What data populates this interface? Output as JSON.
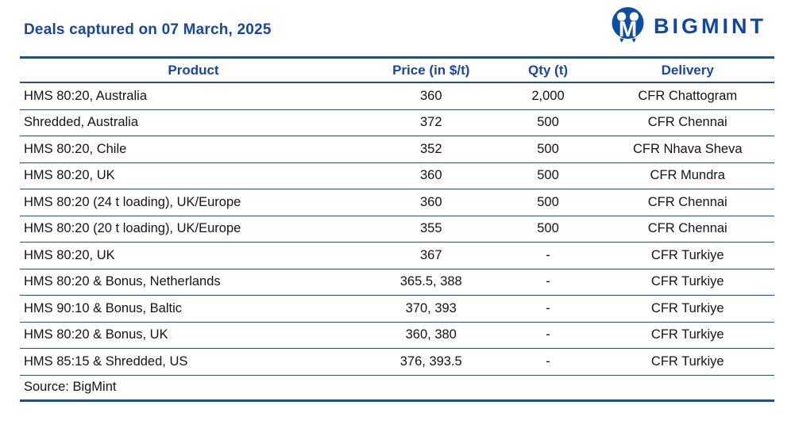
{
  "header": {
    "title": "Deals captured on 07 March, 2025",
    "brand_name": "BIGMINT"
  },
  "table": {
    "columns": [
      "Product",
      "Price (in $/t)",
      "Qty (t)",
      "Delivery"
    ],
    "rows": [
      [
        "HMS 80:20, Australia",
        "360",
        "2,000",
        "CFR Chattogram"
      ],
      [
        "Shredded, Australia",
        "372",
        "500",
        "CFR Chennai"
      ],
      [
        "HMS 80:20, Chile",
        "352",
        "500",
        "CFR Nhava Sheva"
      ],
      [
        "HMS 80:20, UK",
        "360",
        "500",
        "CFR Mundra"
      ],
      [
        "HMS 80:20 (24 t loading), UK/Europe",
        "360",
        "500",
        "CFR Chennai"
      ],
      [
        "HMS 80:20 (20 t loading), UK/Europe",
        "355",
        "500",
        "CFR Chennai"
      ],
      [
        "HMS 80:20, UK",
        "367",
        "-",
        "CFR Turkiye"
      ],
      [
        "HMS 80:20 & Bonus, Netherlands",
        "365.5, 388",
        "-",
        "CFR Turkiye"
      ],
      [
        "HMS 90:10 & Bonus, Baltic",
        "370, 393",
        "-",
        "CFR Turkiye"
      ],
      [
        "HMS 80:20 & Bonus, UK",
        "360, 380",
        "-",
        "CFR Turkiye"
      ],
      [
        "HMS 85:15 & Shredded, US",
        "376, 393.5",
        "-",
        "CFR Turkiye"
      ]
    ],
    "source": "Source: BigMint"
  },
  "colors": {
    "accent_blue": "#17479E",
    "line_blue": "#1B4F9E",
    "logo_blue": "#0E4DA4",
    "text_black": "#141414",
    "background": "#FFFFFF"
  }
}
